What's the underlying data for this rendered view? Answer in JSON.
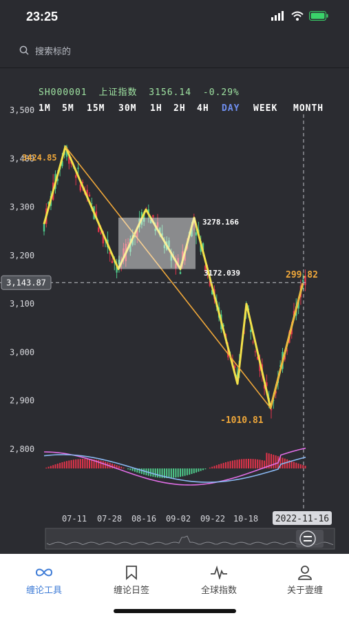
{
  "status": {
    "time": "23:25"
  },
  "search": {
    "placeholder": "搜索标的"
  },
  "chart_header": {
    "code": "SH000001",
    "name": "上证指数",
    "price": "3156.14",
    "change": "-0.29%"
  },
  "timeframes": [
    "1M",
    "5M",
    "15M",
    "30M",
    "1H",
    "2H",
    "4H",
    "DAY",
    "WEEK",
    "MONTH"
  ],
  "active_timeframe": "DAY",
  "colors": {
    "up": "#e0344a",
    "down": "#4ec98a",
    "stroke": "#f2e14a",
    "panel": "#2b2c31",
    "active_tf": "#6f8ff0",
    "accent": "#f0a83a"
  },
  "chart_data": {
    "type": "candlestick",
    "y_ticks": [
      "3,500",
      "3,400",
      "3,300",
      "3,200",
      "3,100",
      "3,000",
      "2,900",
      "2,800"
    ],
    "x_ticks": [
      "07-11",
      "07-28",
      "08-16",
      "09-02",
      "09-22",
      "10-18"
    ],
    "ylim": [
      2800,
      3500
    ],
    "crosshair_value": "3,143.87",
    "crosshair_date": "2022-11-16",
    "annotations": {
      "high": "3424.85",
      "box_top": "3278.166",
      "box_bottom": "3172.039",
      "right_label": "299.82",
      "low_label": "-1010.81"
    }
  },
  "tabs": [
    {
      "label": "缠论工具",
      "icon": "infinity-icon"
    },
    {
      "label": "缠论日签",
      "icon": "bookmark-icon"
    },
    {
      "label": "全球指数",
      "icon": "pulse-icon"
    },
    {
      "label": "关于壹缠",
      "icon": "user-icon"
    }
  ]
}
